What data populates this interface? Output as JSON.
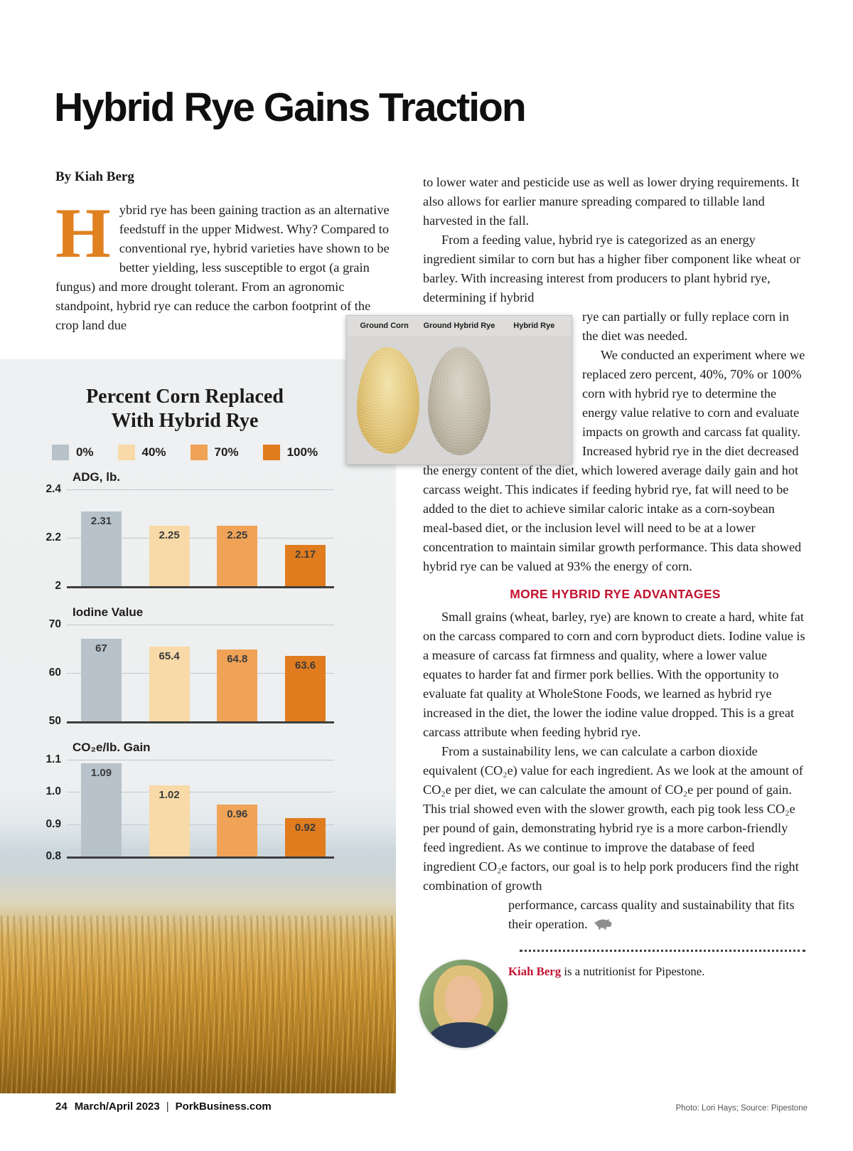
{
  "colors": {
    "accent_red": "#c41230",
    "dropcap_orange": "#e0811f",
    "baseline": "#3e3e3e"
  },
  "article": {
    "title": "Hybrid Rye Gains Traction",
    "byline": "By Kiah Berg",
    "dropcap": "H",
    "p1_rest": "ybrid rye has been gaining traction as an alternative feedstuff in the upper Midwest. Why? Compared to conventional rye, hybrid varieties have shown to be better yielding, less susceptible to ergot (a grain fungus) and more drought tolerant. From an agronomic standpoint, hybrid rye can reduce the carbon footprint of the crop land due",
    "col2": {
      "p1": "to lower water and pesticide use as well as lower drying requirements. It also allows for earlier manure spreading compared to tillable land harvested in the fall.",
      "p2a": "From a feeding value, hybrid rye is categorized as an energy ingredient similar to corn but has a higher fiber component like wheat or barley. With increasing interest from producers to plant hybrid rye, determining if hybrid",
      "p2b": "rye can partially or fully replace corn in the diet was needed.",
      "p3a": "We conducted an experiment where we replaced zero percent, 40%, 70% or 100% corn with hybrid rye to determine the energy value relative to corn and evaluate impacts on growth and carcass fat quality. Increased hybrid rye in the diet decreased",
      "p3b": "the energy content of the diet, which lowered average daily gain and hot carcass weight. This indicates if feeding hybrid rye, fat will need to be added to the diet to achieve similar caloric intake as a corn-soybean meal-based diet, or the inclusion level will need to be at a lower concentration to maintain similar growth performance. This data showed hybrid rye can be valued at 93% the energy of corn.",
      "section_heading": "MORE HYBRID RYE ADVANTAGES",
      "p4": "Small grains (wheat, barley, rye) are known to create a hard, white fat on the carcass compared to corn and corn byproduct diets. Iodine value is a measure of carcass fat firmness and quality, where a lower value equates to harder fat and firmer pork bellies. With the opportunity to evaluate fat quality at WholeStone Foods, we learned as hybrid rye increased in the diet, the lower the iodine value dropped. This is a great carcass attribute when feeding hybrid rye.",
      "p5a": "From a sustainability lens, we can calculate a carbon dioxide equivalent (CO₂e) value for each ingredient. As we look at the amount of CO₂e per diet, we can calculate the amount of CO₂e per pound of gain. This trial showed even with the slower growth, each pig took less CO₂e per pound of gain, demonstrating hybrid rye is a more carbon-friendly feed ingredient. As we continue to improve the database of feed ingredient CO₂e factors, our goal is to help pork producers find the right combination of growth",
      "p5b": "performance, carcass quality and sustainability that fits their operation.",
      "caption_name": "Kiah Berg",
      "caption_rest": " is a nutritionist for Pipestone."
    }
  },
  "grain_figure": {
    "labels": [
      "Ground Corn",
      "Ground Hybrid Rye",
      "Hybrid Rye"
    ]
  },
  "chart_panel": {
    "title_line1": "Percent Corn Replaced",
    "title_line2": "With Hybrid Rye"
  },
  "legend": {
    "items": [
      {
        "label": "0%",
        "color": "#b7c2ca"
      },
      {
        "label": "40%",
        "color": "#f8d9a8"
      },
      {
        "label": "70%",
        "color": "#f0a356"
      },
      {
        "label": "100%",
        "color": "#e07c1e"
      }
    ]
  },
  "chart_data": [
    {
      "type": "bar",
      "title": "ADG, lb.",
      "categories": [
        "0%",
        "40%",
        "70%",
        "100%"
      ],
      "values": [
        2.31,
        2.25,
        2.25,
        2.17
      ],
      "value_labels": [
        "2.31",
        "2.25",
        "2.25",
        "2.17"
      ],
      "ylim": [
        2,
        2.4
      ],
      "yticks": [
        {
          "label": "2",
          "value": 2
        },
        {
          "label": "2.2",
          "value": 2.2
        },
        {
          "label": "2.4",
          "value": 2.4
        }
      ]
    },
    {
      "type": "bar",
      "title": "Iodine Value",
      "categories": [
        "0%",
        "40%",
        "70%",
        "100%"
      ],
      "values": [
        67,
        65.4,
        64.8,
        63.6
      ],
      "value_labels": [
        "67",
        "65.4",
        "64.8",
        "63.6"
      ],
      "ylim": [
        50,
        70
      ],
      "yticks": [
        {
          "label": "50",
          "value": 50
        },
        {
          "label": "60",
          "value": 60
        },
        {
          "label": "70",
          "value": 70
        }
      ]
    },
    {
      "type": "bar",
      "title": "CO₂e/lb. Gain",
      "categories": [
        "0%",
        "40%",
        "70%",
        "100%"
      ],
      "values": [
        1.09,
        1.02,
        0.96,
        0.92
      ],
      "value_labels": [
        "1.09",
        "1.02",
        "0.96",
        "0.92"
      ],
      "ylim": [
        0.8,
        1.1
      ],
      "yticks": [
        {
          "label": "0.8",
          "value": 0.8
        },
        {
          "label": "0.9",
          "value": 0.9
        },
        {
          "label": "1.0",
          "value": 1.0
        },
        {
          "label": "1.1",
          "value": 1.1
        }
      ]
    }
  ],
  "footer": {
    "page_number": "24",
    "issue": "March/April 2023",
    "site": "PorkBusiness.com",
    "credit": "Photo: Lori Hays; Source: Pipestone"
  },
  "icons": {
    "pig": "pig-icon"
  }
}
